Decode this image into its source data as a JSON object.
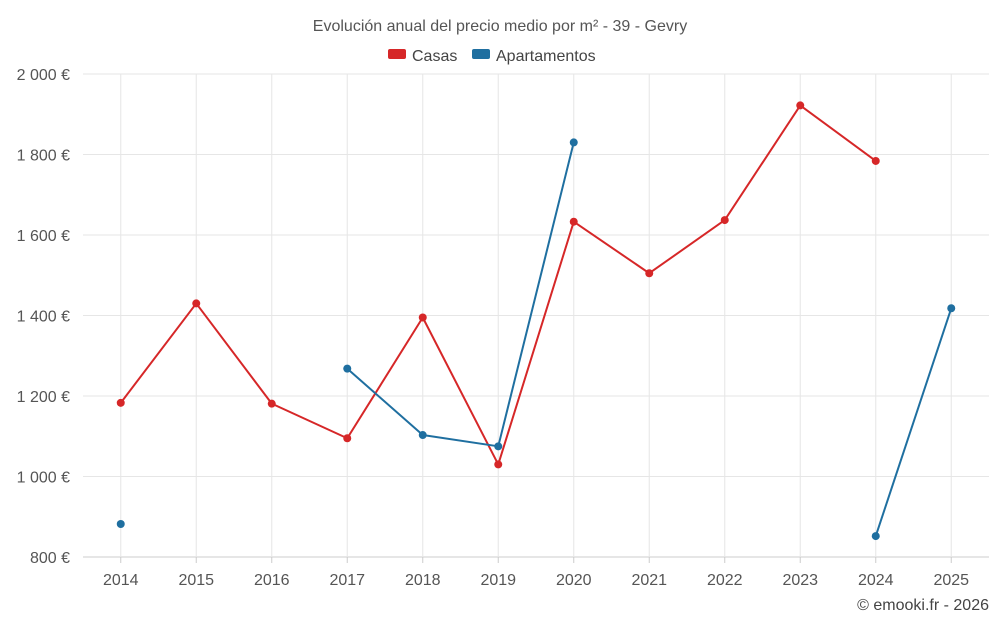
{
  "chart_data": {
    "type": "line",
    "title": "Evolución anual del precio medio por m² - 39 - Gevry",
    "categories": [
      "2014",
      "2015",
      "2016",
      "2017",
      "2018",
      "2019",
      "2020",
      "2021",
      "2022",
      "2023",
      "2024",
      "2025"
    ],
    "y_ticks": [
      800,
      1000,
      1200,
      1400,
      1600,
      1800,
      2000
    ],
    "y_tick_labels": [
      "800 €",
      "1 000 €",
      "1 200 €",
      "1 400 €",
      "1 600 €",
      "1 800 €",
      "2 000 €"
    ],
    "ylim": [
      800,
      2000
    ],
    "grid": true,
    "legend_position": "top-center",
    "series": [
      {
        "name": "Casas",
        "color": "#d62728",
        "values": [
          1183,
          1430,
          1181,
          1095,
          1395,
          1030,
          1633,
          1505,
          1637,
          1922,
          1784,
          null
        ]
      },
      {
        "name": "Apartamentos",
        "color": "#1f6fa0",
        "values": [
          882,
          null,
          null,
          1268,
          1103,
          1075,
          1830,
          null,
          null,
          null,
          852,
          1418
        ]
      }
    ]
  },
  "credit": "© emooki.fr - 2026"
}
